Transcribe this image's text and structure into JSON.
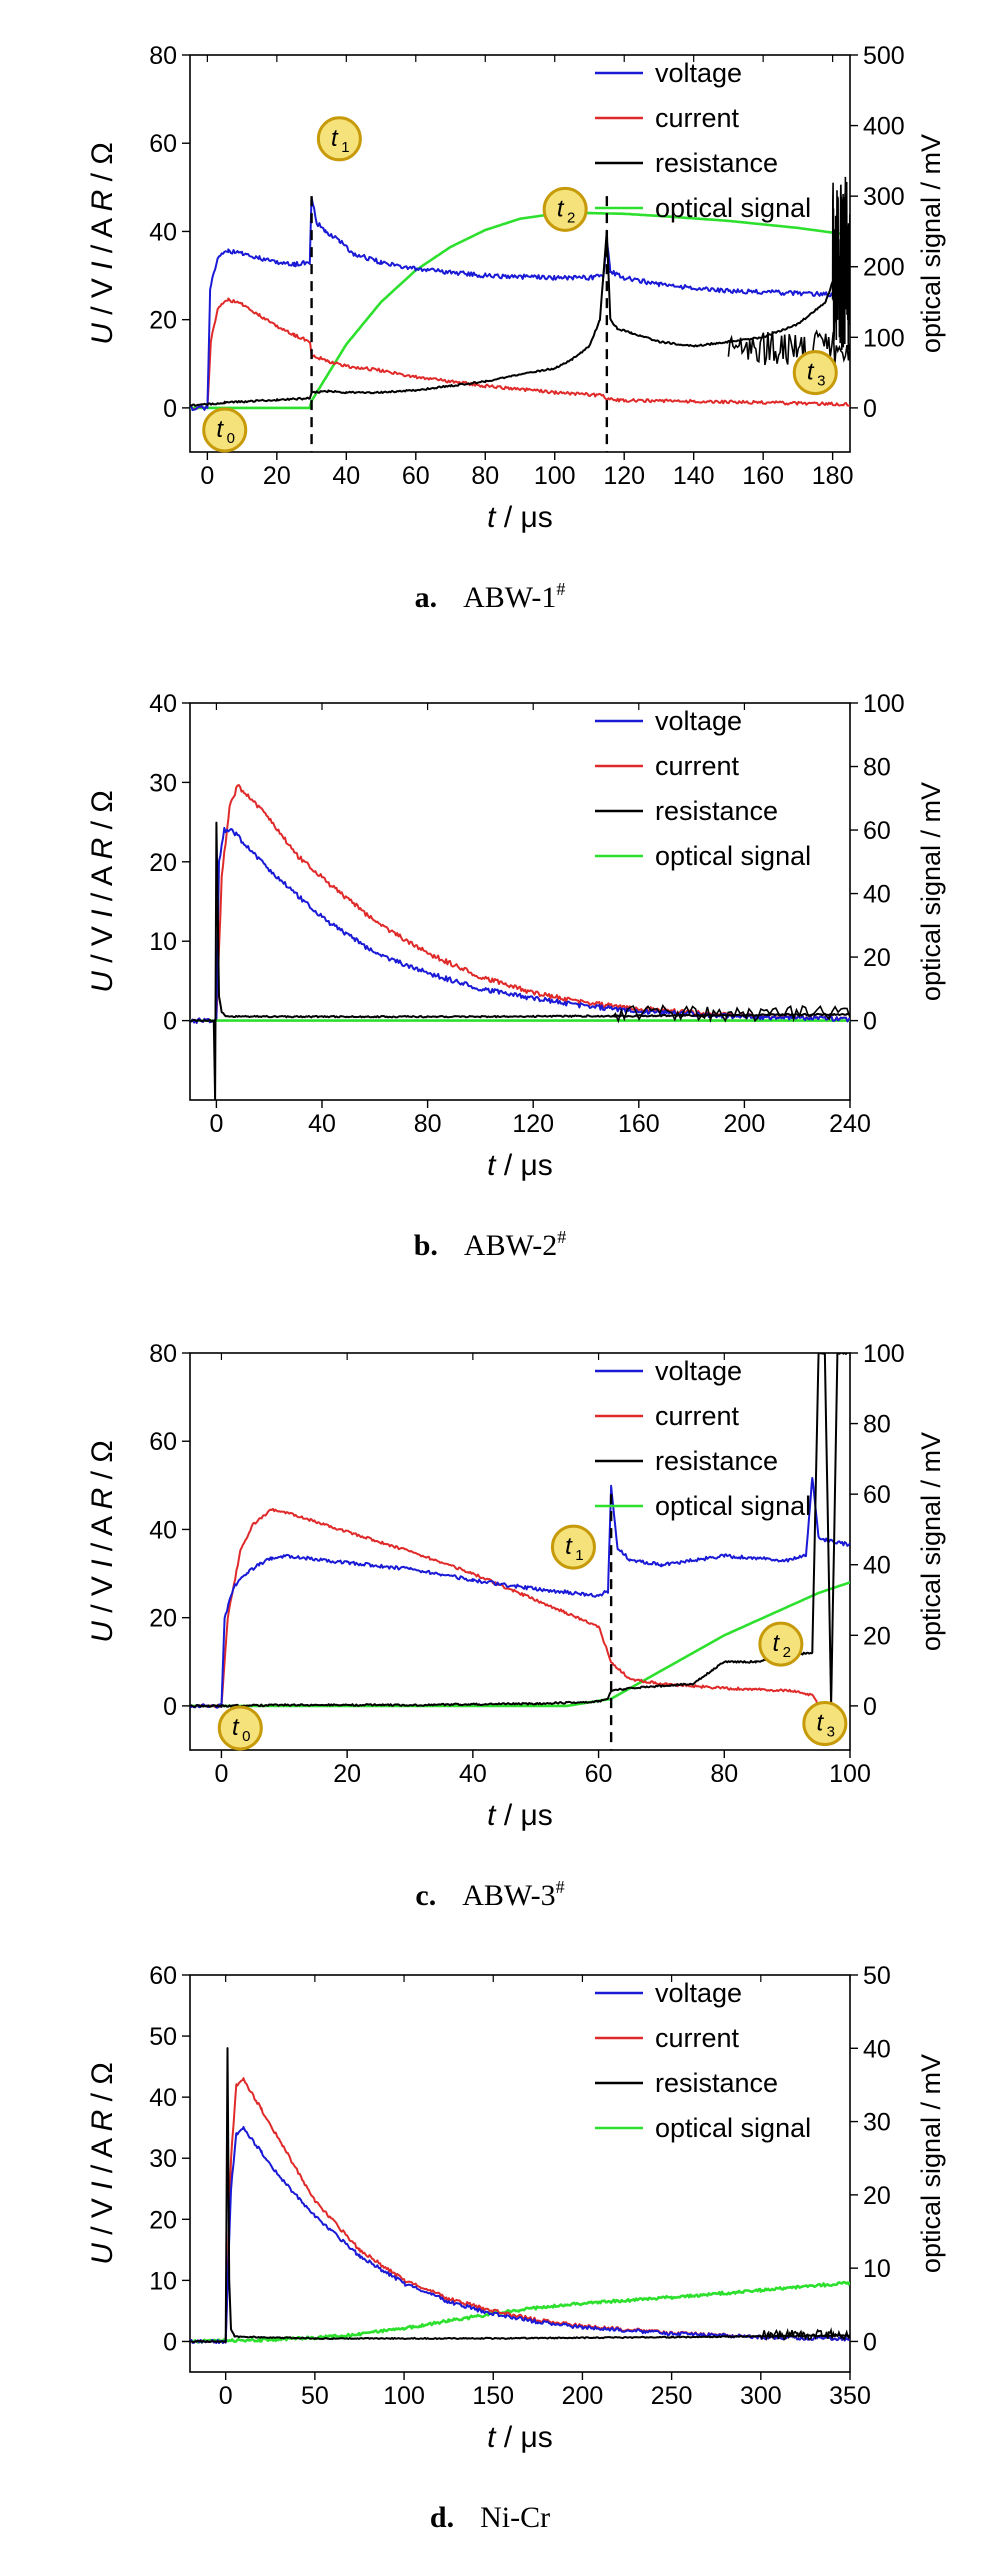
{
  "chart_data": [
    {
      "type": "line",
      "caption": {
        "letter": "a.",
        "name": "ABW-1",
        "sup": "#"
      },
      "xlabel": {
        "var": "t",
        "unit": " / μs"
      },
      "ylabel": {
        "u": "U",
        "uu": " / V",
        "i": "I",
        "iu": " / A",
        "r": "R",
        "ru": " / Ω"
      },
      "ylabel_right": "optical signal / mV",
      "xlim": [
        -5,
        185
      ],
      "ylim": [
        -10,
        80
      ],
      "ylim_right": [
        -62.5,
        500
      ],
      "x_ticks": [
        0,
        20,
        40,
        60,
        80,
        100,
        120,
        140,
        160,
        180
      ],
      "y_ticks": [
        0,
        20,
        40,
        60,
        80
      ],
      "y_ticks_right": [
        0,
        100,
        200,
        300,
        400,
        500
      ],
      "legend": [
        "voltage",
        "current",
        "resistance",
        "optical signal"
      ],
      "legend_position": "top-right",
      "dashed_lines": [
        30,
        115
      ],
      "markers": [
        {
          "text": "t",
          "sub": "0",
          "x": 5,
          "y": -5
        },
        {
          "text": "t",
          "sub": "1",
          "x": 38,
          "y": 61
        },
        {
          "text": "t",
          "sub": "2",
          "x": 103,
          "y": 45
        },
        {
          "text": "t",
          "sub": "3",
          "x": 175,
          "y": 8
        }
      ],
      "series": [
        {
          "name": "voltage",
          "axis": "left",
          "noise": 0.5,
          "x": [
            -5,
            0,
            0.8,
            3,
            6,
            10,
            15,
            20,
            25,
            29.5,
            30,
            31.5,
            34,
            38,
            42,
            50,
            60,
            80,
            100,
            110,
            114,
            115,
            116,
            120,
            130,
            150,
            170,
            185
          ],
          "y": [
            0,
            0,
            27,
            34,
            35.5,
            35,
            34,
            33,
            32.5,
            33,
            48,
            42,
            40,
            38,
            35,
            33,
            31.5,
            30,
            29.5,
            29.5,
            30,
            38,
            31,
            29.5,
            28,
            26.5,
            26,
            25.5
          ]
        },
        {
          "name": "current",
          "axis": "left",
          "noise": 0.35,
          "x": [
            -5,
            0,
            1,
            3,
            6,
            10,
            15,
            20,
            25,
            29.5,
            30,
            35,
            40,
            50,
            60,
            80,
            100,
            110,
            114,
            115,
            120,
            140,
            160,
            185
          ],
          "y": [
            0,
            0,
            15,
            22.5,
            24.5,
            23.5,
            21,
            18.5,
            16.5,
            15,
            12,
            10.5,
            9.5,
            8.5,
            7,
            5,
            3.5,
            3,
            2.8,
            2,
            1.7,
            1.5,
            1.2,
            0.8
          ]
        },
        {
          "name": "resistance",
          "axis": "left",
          "noise": 0.2,
          "x": [
            -5,
            0,
            5,
            20,
            29.5,
            30,
            35,
            40,
            50,
            60,
            70,
            80,
            90,
            100,
            105,
            110,
            113,
            115,
            116,
            118,
            122,
            130,
            140,
            150,
            160,
            170,
            178,
            182,
            185
          ],
          "y": [
            0.5,
            0.8,
            1.2,
            1.8,
            2.2,
            3.5,
            3.8,
            3.5,
            3.5,
            4,
            5,
            6,
            7.5,
            9,
            11,
            14,
            20,
            40,
            20,
            18,
            17,
            15,
            14,
            15,
            16,
            19,
            24,
            33,
            40
          ]
        },
        {
          "name": "optical signal",
          "axis": "right",
          "noise": 0,
          "x": [
            -5,
            29.5,
            30,
            35,
            40,
            50,
            60,
            70,
            80,
            90,
            100,
            110,
            120,
            130,
            150,
            170,
            185
          ],
          "y": [
            0,
            0,
            10,
            50,
            90,
            150,
            195,
            228,
            252,
            268,
            275,
            276,
            275,
            272,
            265,
            255,
            245
          ]
        }
      ],
      "spikes": [
        {
          "series": "resistance",
          "x0": 150,
          "x1": 185,
          "base": 12,
          "amp": 8
        },
        {
          "series": "resistance",
          "x0": 180,
          "x1": 185,
          "base": 25,
          "amp": 40
        }
      ]
    },
    {
      "type": "line",
      "caption": {
        "letter": "b.",
        "name": "ABW-2",
        "sup": "#"
      },
      "xlabel": {
        "var": "t",
        "unit": " / μs"
      },
      "ylabel": {
        "u": "U",
        "uu": " / V",
        "i": "I",
        "iu": " / A",
        "r": "R",
        "ru": " / Ω"
      },
      "ylabel_right": "optical signal / mV",
      "xlim": [
        -10,
        240
      ],
      "ylim": [
        -10,
        40
      ],
      "ylim_right": [
        -25,
        100
      ],
      "x_ticks": [
        0,
        40,
        80,
        120,
        160,
        200,
        240
      ],
      "y_ticks": [
        0,
        10,
        20,
        30,
        40
      ],
      "y_ticks_right": [
        0,
        20,
        40,
        60,
        80,
        100
      ],
      "legend": [
        "voltage",
        "current",
        "resistance",
        "optical signal"
      ],
      "legend_position": "top-right",
      "dashed_lines": [],
      "markers": [],
      "series": [
        {
          "name": "voltage",
          "axis": "left",
          "noise": 0.3,
          "x": [
            -10,
            0,
            1,
            3,
            6,
            10,
            20,
            30,
            40,
            60,
            80,
            100,
            120,
            140,
            160,
            180,
            200,
            240
          ],
          "y": [
            0,
            0,
            20,
            24,
            24,
            22.5,
            19,
            16,
            13,
            8.5,
            6,
            4,
            2.8,
            1.8,
            1.2,
            0.8,
            0.5,
            0.2
          ]
        },
        {
          "name": "current",
          "axis": "left",
          "noise": 0.3,
          "x": [
            -10,
            0,
            2,
            5,
            8,
            10,
            20,
            30,
            40,
            60,
            80,
            100,
            120,
            140,
            160,
            180,
            200,
            240
          ],
          "y": [
            0,
            0,
            18,
            27,
            29.5,
            29,
            25.5,
            21,
            18,
            12.5,
            8.5,
            5.5,
            3.5,
            2.2,
            1.5,
            1,
            0.6,
            0.2
          ]
        },
        {
          "name": "resistance",
          "axis": "left",
          "noise": 0.1,
          "x": [
            -10,
            -1,
            -0.5,
            0,
            1,
            2,
            4,
            20,
            100,
            160,
            240
          ],
          "y": [
            0,
            0,
            -10,
            25,
            3,
            1,
            0.5,
            0.5,
            0.5,
            0.6,
            0.8
          ]
        },
        {
          "name": "optical signal",
          "axis": "right",
          "noise": 0,
          "x": [
            -10,
            160,
            240
          ],
          "y": [
            0,
            0,
            0
          ]
        }
      ],
      "spikes": [
        {
          "series": "resistance",
          "x0": 150,
          "x1": 240,
          "base": 0.5,
          "amp": 2
        }
      ]
    },
    {
      "type": "line",
      "caption": {
        "letter": "c.",
        "name": "ABW-3",
        "sup": "#"
      },
      "xlabel": {
        "var": "t",
        "unit": " / μs"
      },
      "ylabel": {
        "u": "U",
        "uu": " / V",
        "i": "I",
        "iu": " / A",
        "r": "R",
        "ru": " / Ω"
      },
      "ylabel_right": "optical signal / mV",
      "xlim": [
        -5,
        100
      ],
      "ylim": [
        -10,
        80
      ],
      "ylim_right": [
        -12.5,
        100
      ],
      "x_ticks": [
        0,
        20,
        40,
        60,
        80,
        100
      ],
      "y_ticks": [
        0,
        20,
        40,
        60,
        80
      ],
      "y_ticks_right": [
        0,
        20,
        40,
        60,
        80,
        100
      ],
      "legend": [
        "voltage",
        "current",
        "resistance",
        "optical signal"
      ],
      "legend_position": "top-right",
      "dashed_lines": [
        62
      ],
      "markers": [
        {
          "text": "t",
          "sub": "0",
          "x": 3,
          "y": -5
        },
        {
          "text": "t",
          "sub": "1",
          "x": 56,
          "y": 36
        },
        {
          "text": "t",
          "sub": "2",
          "x": 89,
          "y": 14
        },
        {
          "text": "t",
          "sub": "3",
          "x": 96,
          "y": -4
        }
      ],
      "series": [
        {
          "name": "voltage",
          "axis": "left",
          "noise": 0.4,
          "x": [
            -5,
            0,
            0.5,
            2,
            4,
            6,
            8,
            10,
            20,
            30,
            40,
            50,
            60,
            61.5,
            62,
            63,
            65,
            70,
            80,
            90,
            93,
            94,
            95,
            100
          ],
          "y": [
            0,
            0,
            20,
            27,
            30,
            32,
            33.5,
            34,
            32.5,
            31,
            28.5,
            26.5,
            25,
            26,
            50,
            36,
            33,
            32,
            34,
            33,
            34,
            52,
            38,
            36.5
          ]
        },
        {
          "name": "current",
          "axis": "left",
          "noise": 0.3,
          "x": [
            -5,
            0,
            1,
            3,
            5,
            8,
            10,
            20,
            30,
            40,
            50,
            60,
            62,
            65,
            70,
            80,
            90,
            94,
            95
          ],
          "y": [
            0,
            0,
            20,
            35,
            41,
            44.5,
            44,
            39.5,
            35,
            30,
            24,
            18,
            10,
            6,
            5,
            4,
            3.5,
            2.5,
            0
          ]
        },
        {
          "name": "resistance",
          "axis": "left",
          "noise": 0.2,
          "x": [
            -5,
            0,
            10,
            30,
            50,
            60,
            61.5,
            62,
            65,
            70,
            75,
            78,
            80,
            85,
            90,
            93,
            94,
            95,
            96,
            97,
            98,
            100
          ],
          "y": [
            0,
            0,
            0.2,
            0.2,
            0.5,
            1,
            1.5,
            3.5,
            4,
            4.5,
            5,
            8,
            10,
            10,
            11,
            12,
            12,
            80,
            80,
            0,
            80,
            80
          ]
        },
        {
          "name": "optical signal",
          "axis": "right",
          "noise": 0,
          "x": [
            -5,
            55,
            62,
            65,
            70,
            75,
            80,
            85,
            90,
            95,
            100
          ],
          "y": [
            0,
            0,
            2,
            5,
            10,
            15,
            20,
            24,
            28,
            32,
            35
          ]
        }
      ],
      "spikes": []
    },
    {
      "type": "line",
      "caption": {
        "letter": "d.",
        "name": "Ni-Cr",
        "sup": ""
      },
      "xlabel": {
        "var": "t",
        "unit": " / μs"
      },
      "ylabel": {
        "u": "U",
        "uu": " / V",
        "i": "I",
        "iu": " / A",
        "r": "R",
        "ru": " / Ω"
      },
      "ylabel_right": "optical signal / mV",
      "xlim": [
        -20,
        350
      ],
      "ylim": [
        -5,
        60
      ],
      "ylim_right": [
        -4.17,
        50
      ],
      "x_ticks": [
        0,
        50,
        100,
        150,
        200,
        250,
        300,
        350
      ],
      "y_ticks": [
        0,
        10,
        20,
        30,
        40,
        50,
        60
      ],
      "y_ticks_right": [
        0,
        10,
        20,
        30,
        40,
        50
      ],
      "legend": [
        "voltage",
        "current",
        "resistance",
        "optical signal"
      ],
      "legend_position": "top-right",
      "dashed_lines": [],
      "markers": [],
      "series": [
        {
          "name": "voltage",
          "axis": "left",
          "noise": 0.3,
          "x": [
            -20,
            0,
            3,
            6,
            10,
            20,
            30,
            50,
            75,
            100,
            125,
            150,
            175,
            200,
            250,
            300,
            350
          ],
          "y": [
            0,
            0,
            25,
            34,
            35,
            31,
            27,
            20.5,
            14,
            9.5,
            6.5,
            4.5,
            3.2,
            2.3,
            1.3,
            0.7,
            0.4
          ]
        },
        {
          "name": "current",
          "axis": "left",
          "noise": 0.3,
          "x": [
            -20,
            0,
            3,
            6,
            10,
            20,
            30,
            50,
            75,
            100,
            125,
            150,
            175,
            200,
            250,
            300,
            350
          ],
          "y": [
            0,
            0,
            30,
            42,
            43,
            38,
            33,
            23,
            15,
            10,
            7,
            5,
            3.5,
            2.5,
            1.4,
            0.7,
            0.4
          ]
        },
        {
          "name": "resistance",
          "axis": "left",
          "noise": 0.1,
          "x": [
            -20,
            0,
            1,
            2,
            3,
            5,
            50,
            150,
            250,
            350
          ],
          "y": [
            0,
            0,
            48,
            10,
            2,
            0.8,
            0.5,
            0.5,
            0.7,
            1
          ]
        },
        {
          "name": "optical signal",
          "axis": "right",
          "noise": 0.2,
          "x": [
            -20,
            20,
            50,
            75,
            100,
            125,
            150,
            175,
            200,
            225,
            250,
            300,
            350
          ],
          "y": [
            0,
            0.2,
            0.5,
            1,
            1.8,
            2.8,
            3.8,
            4.6,
            5.2,
            5.6,
            6,
            7,
            8
          ]
        }
      ],
      "spikes": [
        {
          "series": "resistance",
          "x0": 300,
          "x1": 350,
          "base": 0.8,
          "amp": 1.5
        }
      ]
    }
  ],
  "colors": {
    "voltage": "#1a1ad6",
    "current": "#e02a2a",
    "resistance": "#000000",
    "optical signal": "#2ee02e",
    "marker_fill": "#f6e27a",
    "marker_stroke": "#c79a0a"
  }
}
